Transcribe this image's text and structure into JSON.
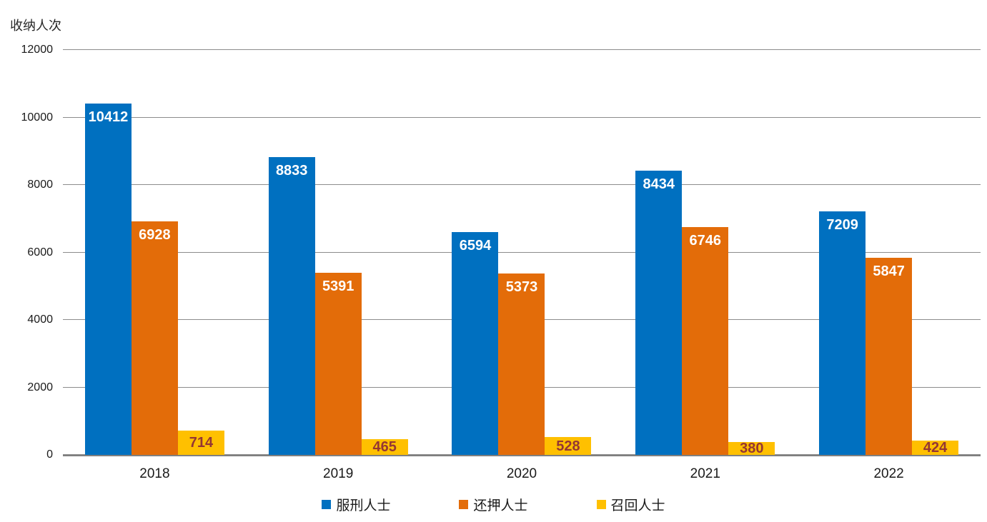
{
  "chart_data": {
    "type": "bar",
    "title": "",
    "ylabel": "收纳人次",
    "xlabel": "",
    "categories": [
      "2018",
      "2019",
      "2020",
      "2021",
      "2022"
    ],
    "series": [
      {
        "name": "服刑人士",
        "color": "#0070C0",
        "label_color": "#FFFFFF",
        "values": [
          10412,
          8833,
          6594,
          8434,
          7209
        ]
      },
      {
        "name": "还押人士",
        "color": "#E36C09",
        "label_color": "#FFFFFF",
        "values": [
          6928,
          5391,
          5373,
          6746,
          5847
        ]
      },
      {
        "name": "召回人士",
        "color": "#FFC000",
        "label_color": "#943634",
        "values": [
          714,
          465,
          528,
          380,
          424
        ]
      }
    ],
    "ylim": [
      0,
      12000
    ],
    "yticks": [
      0,
      2000,
      4000,
      6000,
      8000,
      10000,
      12000
    ],
    "grid": true,
    "gridline_color": "#8C8C8C",
    "axis_line_color": "#808080",
    "legend_position": "bottom",
    "data_labels": true
  }
}
